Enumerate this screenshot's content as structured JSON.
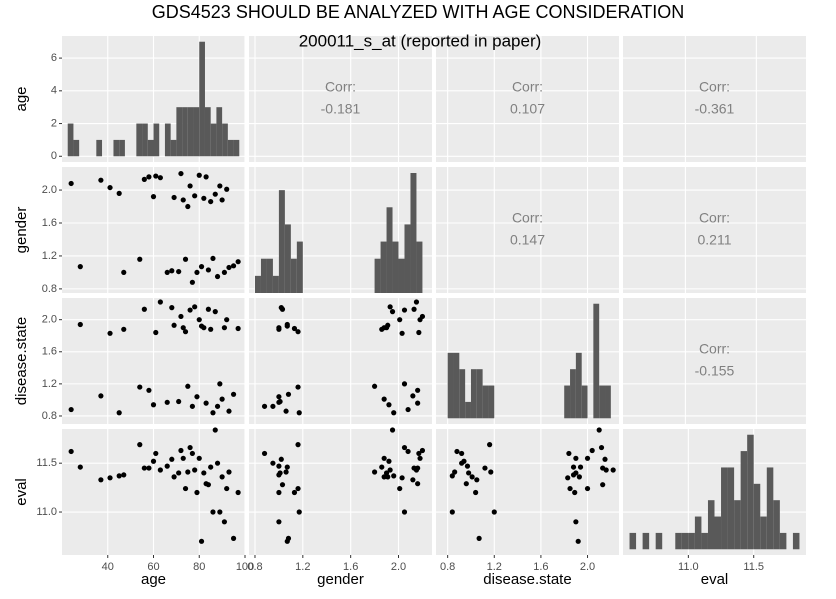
{
  "chart_data": {
    "type": "pairs",
    "title": "GDS4523 SHOULD BE ANALYZED WITH AGE CONSIDERATION",
    "subtitle": "200011_s_at (reported in paper)",
    "grid": true,
    "point_color": "#000000",
    "bar_color": "#595959",
    "corr_label": "Corr:",
    "variables": [
      {
        "name": "age",
        "lim": [
          20,
          100
        ],
        "ticks": [
          40,
          60,
          80,
          100
        ],
        "values": [
          24,
          28,
          37,
          41,
          45,
          47,
          54,
          56,
          58,
          60,
          61,
          63,
          66,
          68,
          69,
          71,
          72,
          73,
          74,
          75,
          76,
          77,
          78,
          79,
          80,
          81,
          82,
          83,
          84,
          85,
          86,
          87,
          88,
          89,
          90,
          91,
          92,
          93,
          95,
          97
        ]
      },
      {
        "name": "gender",
        "lim": [
          0.75,
          2.28
        ],
        "ticks": [
          0.8,
          1.2,
          1.6,
          {
            "value": 2,
            "label": "2.0"
          }
        ],
        "values": [
          2.08,
          1.07,
          2.12,
          2.03,
          1.96,
          1.0,
          1.16,
          2.13,
          2.16,
          1.92,
          2.17,
          2.15,
          1.0,
          1.02,
          1.91,
          1.01,
          2.2,
          1.88,
          1.16,
          1.8,
          2.05,
          0.88,
          1.93,
          1.0,
          2.18,
          1.07,
          1.9,
          2.16,
          1.03,
          1.86,
          1.17,
          1.95,
          0.95,
          2.05,
          1.88,
          1.0,
          2.01,
          1.06,
          1.08,
          1.13
        ]
      },
      {
        "name": "disease.state",
        "lim": [
          0.7,
          2.27
        ],
        "ticks": [
          0.8,
          1.2,
          1.6,
          {
            "value": 2,
            "label": "2.0"
          }
        ],
        "values": [
          0.88,
          1.94,
          1.05,
          1.83,
          0.84,
          1.88,
          1.16,
          2.13,
          1.12,
          0.94,
          1.84,
          2.22,
          0.97,
          2.15,
          1.93,
          0.98,
          2.04,
          1.9,
          1.85,
          1.17,
          2.12,
          0.92,
          2.16,
          1.04,
          2.0,
          1.92,
          1.9,
          0.96,
          2.13,
          1.88,
          0.84,
          2.1,
          0.92,
          1.2,
          1.01,
          1.9,
          2.0,
          0.86,
          1.07,
          1.89
        ]
      },
      {
        "name": "eval",
        "lim": [
          10.56,
          11.85
        ],
        "ticks": [
          {
            "value": 11,
            "label": "11.0"
          },
          11.5
        ],
        "values": [
          11.62,
          11.46,
          11.33,
          11.35,
          11.37,
          11.38,
          11.69,
          11.45,
          11.45,
          11.52,
          11.6,
          11.43,
          11.47,
          11.54,
          11.36,
          11.4,
          11.63,
          11.55,
          11.24,
          11.41,
          11.66,
          11.6,
          11.43,
          11.2,
          11.55,
          10.7,
          11.4,
          11.29,
          11.28,
          11.46,
          11.0,
          11.84,
          11.5,
          11.0,
          11.36,
          10.9,
          11.24,
          11.41,
          10.73,
          11.2
        ]
      }
    ],
    "histograms": [
      {
        "bins": [
          22.5,
          25,
          27.5,
          30,
          32.5,
          35,
          37.5,
          40,
          42.5,
          45,
          47.5,
          50,
          52.5,
          55,
          57.5,
          60,
          62.5,
          65,
          67.5,
          70,
          72.5,
          75,
          77.5,
          80,
          82.5,
          85,
          87.5,
          90,
          92.5,
          95,
          97.5
        ],
        "counts": [
          2,
          1,
          0,
          0,
          0,
          1,
          0,
          0,
          1,
          1,
          0,
          0,
          2,
          2,
          1,
          2,
          0,
          2,
          1,
          3,
          3,
          3,
          3,
          7,
          3,
          2,
          3,
          2,
          1,
          1
        ],
        "ylim": [
          -0.35,
          7.35
        ],
        "yticks": [
          0,
          2,
          4,
          6
        ]
      },
      {
        "bins": [
          0.8,
          0.85,
          0.9,
          0.95,
          1.0,
          1.05,
          1.1,
          1.15,
          1.2,
          1.25,
          1.3,
          1.35,
          1.4,
          1.45,
          1.5,
          1.55,
          1.6,
          1.65,
          1.7,
          1.75,
          1.8,
          1.85,
          1.9,
          1.95,
          2.0,
          2.05,
          2.1,
          2.15,
          2.2,
          2.25,
          2.3
        ],
        "counts": [
          1,
          2,
          2,
          1,
          6,
          4,
          2,
          3,
          0,
          0,
          0,
          0,
          0,
          0,
          0,
          0,
          0,
          0,
          0,
          0,
          2,
          3,
          5,
          3,
          2,
          4,
          7,
          3,
          0,
          0
        ],
        "ylim": [
          0,
          7.35
        ]
      },
      {
        "bins": [
          0.8,
          0.85,
          0.9,
          0.95,
          1.0,
          1.05,
          1.1,
          1.15,
          1.2,
          1.25,
          1.3,
          1.35,
          1.4,
          1.45,
          1.5,
          1.55,
          1.6,
          1.65,
          1.7,
          1.75,
          1.8,
          1.85,
          1.9,
          1.95,
          2.0,
          2.05,
          2.1,
          2.15,
          2.2,
          2.25,
          2.3
        ],
        "counts": [
          4,
          4,
          3,
          1,
          3,
          3,
          2,
          2,
          0,
          0,
          0,
          0,
          0,
          0,
          0,
          0,
          0,
          0,
          0,
          0,
          2,
          3,
          4,
          2,
          0,
          7,
          2,
          2,
          0,
          0
        ],
        "ylim": [
          -0.35,
          7.35
        ]
      },
      {
        "bins": [
          10.55,
          10.6,
          10.65,
          10.7,
          10.75,
          10.8,
          10.85,
          10.9,
          10.95,
          11.0,
          11.05,
          11.1,
          11.15,
          11.2,
          11.25,
          11.3,
          11.35,
          11.4,
          11.45,
          11.5,
          11.55,
          11.6,
          11.65,
          11.7,
          11.75,
          11.8,
          11.85
        ],
        "counts": [
          1,
          0,
          1,
          0,
          1,
          0,
          0,
          1,
          1,
          1,
          2,
          1,
          3,
          2,
          5,
          5,
          3,
          6,
          7,
          4,
          2,
          5,
          3,
          1,
          0,
          1
        ],
        "ylim": [
          -0.35,
          7.35
        ],
        "xlim": [
          10.5,
          11.9
        ]
      }
    ],
    "correlations": [
      -0.181,
      0.107,
      -0.361,
      0.147,
      0.211,
      -0.155
    ]
  }
}
